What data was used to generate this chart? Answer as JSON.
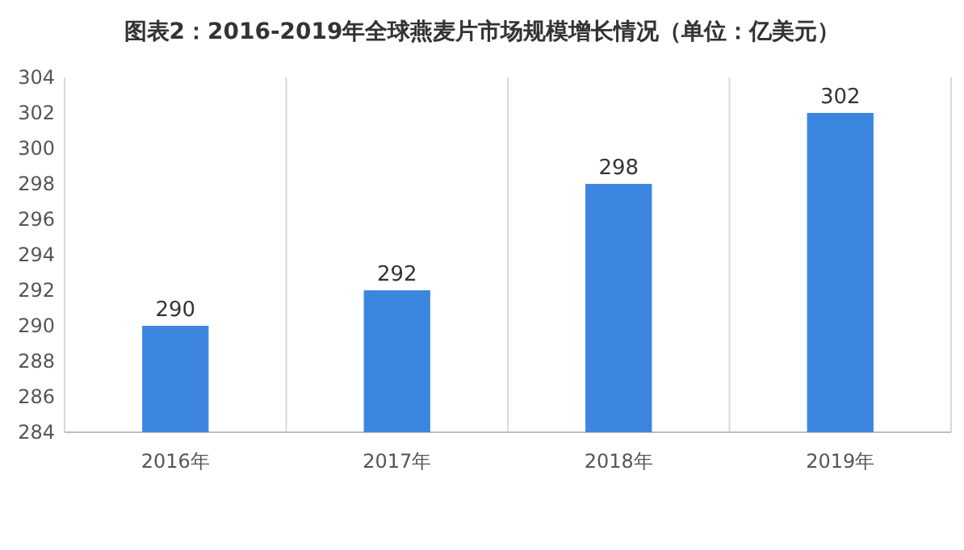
{
  "chart_data": {
    "type": "bar",
    "title": "图表2：2016-2019年全球燕麦片市场规模增长情况（单位：亿美元）",
    "categories": [
      "2016年",
      "2017年",
      "2018年",
      "2019年"
    ],
    "values": [
      290,
      292,
      298,
      302
    ],
    "color": "#3d86e0",
    "ylim": [
      284,
      304
    ],
    "yticks": [
      284,
      286,
      288,
      290,
      292,
      294,
      296,
      298,
      300,
      302,
      304
    ],
    "grid": "x",
    "data_labels": true
  }
}
